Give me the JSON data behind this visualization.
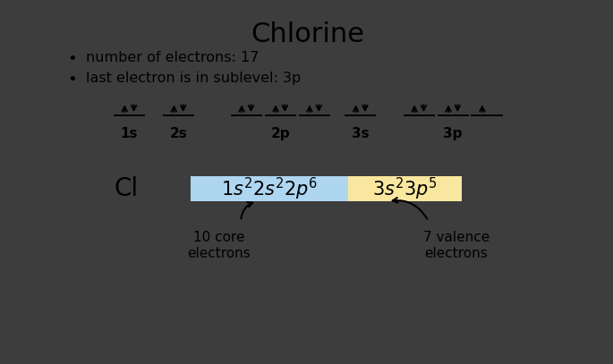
{
  "title": "Chlorine",
  "bullet1": "number of electrons: 17",
  "bullet2": "last electron is in sublevel: 3p",
  "bg_color": "#ffffff",
  "side_bg": "#3d3d3d",
  "core_bg": "#aed6f1",
  "valence_bg": "#f9e79f",
  "label_cl": "Cl",
  "label_core": "10 core\nelectrons",
  "label_valence": "7 valence\nelectrons",
  "orbitals": {
    "1s": {
      "x": 1.35,
      "electrons": [
        1,
        1
      ]
    },
    "2s": {
      "x": 2.15,
      "electrons": [
        1,
        1
      ]
    },
    "2p1": {
      "x": 3.25,
      "electrons": [
        1,
        1
      ]
    },
    "2p2": {
      "x": 3.8,
      "electrons": [
        1,
        1
      ]
    },
    "2p3": {
      "x": 4.35,
      "electrons": [
        1,
        1
      ]
    },
    "3s": {
      "x": 5.1,
      "electrons": [
        1,
        1
      ]
    },
    "3p1": {
      "x": 6.05,
      "electrons": [
        1,
        1
      ]
    },
    "3p2": {
      "x": 6.6,
      "electrons": [
        1,
        1
      ]
    },
    "3p3": {
      "x": 7.15,
      "electrons": [
        1,
        0
      ]
    }
  },
  "sublabel_1s": {
    "x": 1.35,
    "label": "1s"
  },
  "sublabel_2s": {
    "x": 2.15,
    "label": "2s"
  },
  "sublabel_2p": {
    "x": 3.8,
    "label": "2p"
  },
  "sublabel_3s": {
    "x": 5.1,
    "label": "3s"
  },
  "sublabel_3p": {
    "x": 6.6,
    "label": "3p"
  }
}
